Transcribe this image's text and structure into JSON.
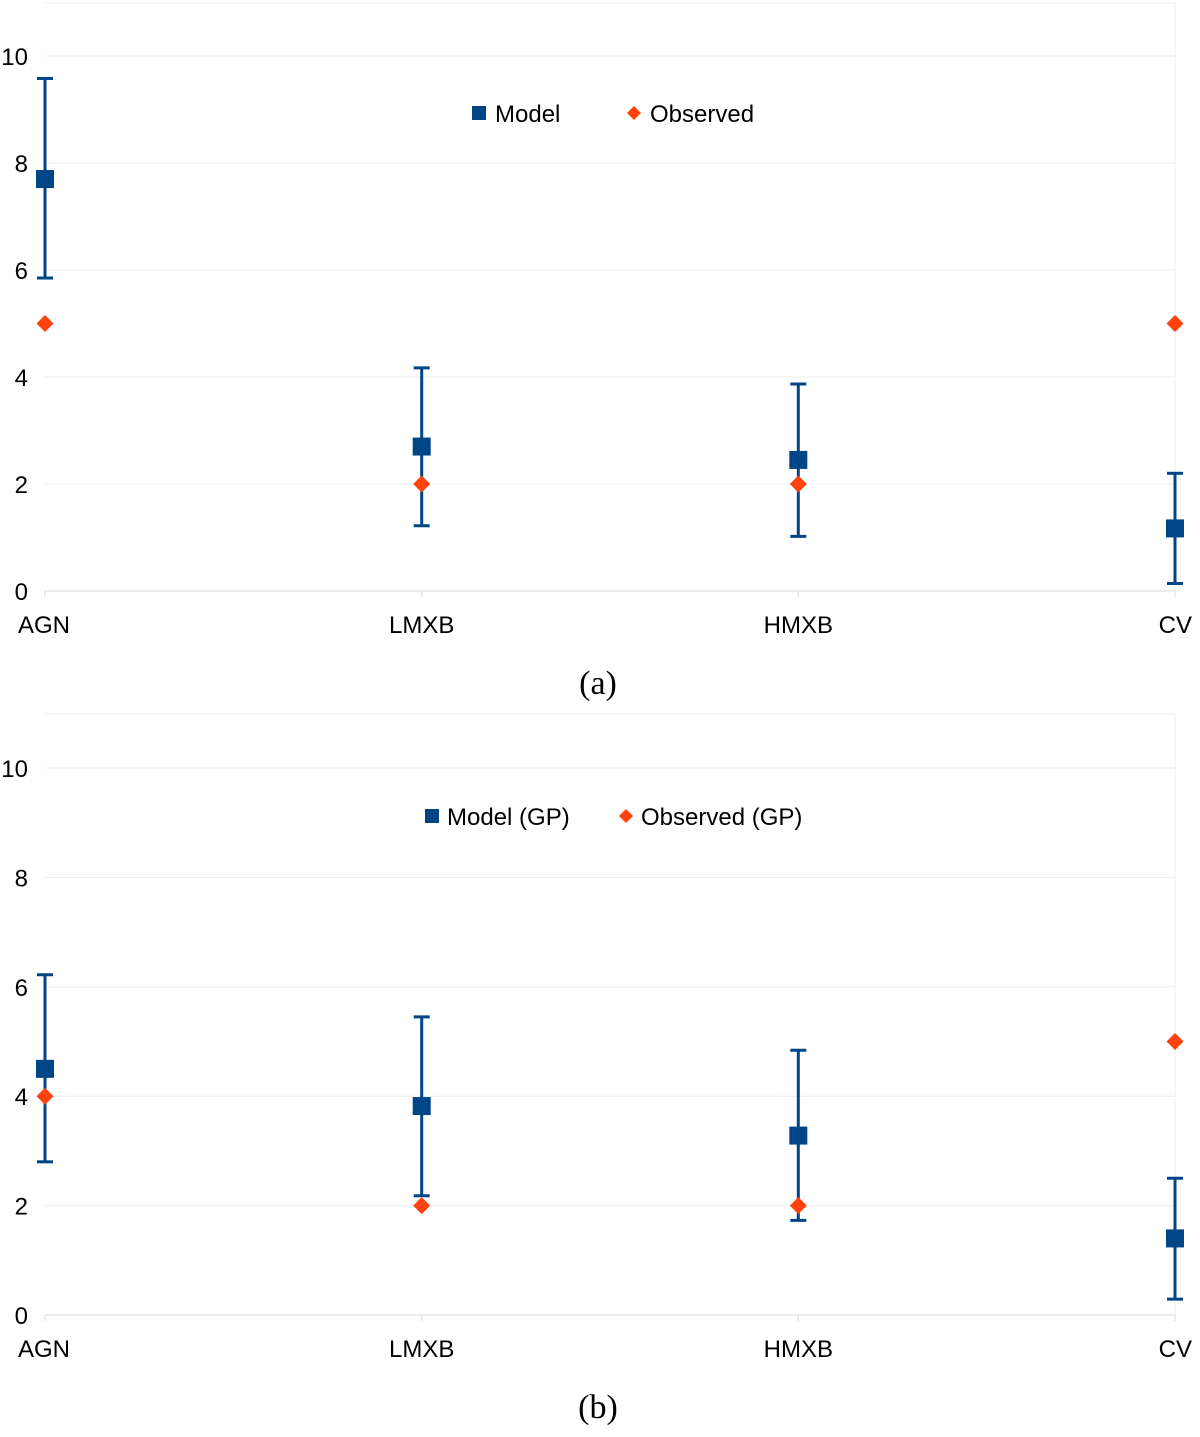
{
  "colors": {
    "model": "#004586",
    "observed": "#ff420e"
  },
  "chart_data": [
    {
      "id": "a",
      "type": "scatter",
      "caption": "(a)",
      "categories": [
        "AGN",
        "LMXB",
        "HMXB",
        "CV"
      ],
      "ylim": [
        0,
        10
      ],
      "yticks": [
        "0",
        "2",
        "4",
        "6",
        "8",
        "10"
      ],
      "grid": true,
      "legend_position": "top-center",
      "xlabel": "",
      "ylabel": "",
      "series": [
        {
          "name": "Model",
          "marker": "square",
          "values": [
            7.7,
            2.7,
            2.45,
            1.17
          ],
          "error_low": [
            5.85,
            1.22,
            1.02,
            0.14
          ],
          "error_high": [
            9.58,
            4.17,
            3.87,
            2.2
          ]
        },
        {
          "name": "Observed",
          "marker": "diamond",
          "values": [
            5,
            2,
            2,
            5
          ]
        }
      ]
    },
    {
      "id": "b",
      "type": "scatter",
      "caption": "(b)",
      "categories": [
        "AGN",
        "LMXB",
        "HMXB",
        "CV"
      ],
      "ylim": [
        0,
        10
      ],
      "yticks": [
        "0",
        "2",
        "4",
        "6",
        "8",
        "10"
      ],
      "grid": true,
      "legend_position": "top-center",
      "xlabel": "",
      "ylabel": "",
      "series": [
        {
          "name": "Model (GP)",
          "marker": "square",
          "values": [
            4.5,
            3.82,
            3.28,
            1.4
          ],
          "error_low": [
            2.8,
            2.18,
            1.73,
            0.29
          ],
          "error_high": [
            6.22,
            5.45,
            4.84,
            2.5
          ]
        },
        {
          "name": "Observed (GP)",
          "marker": "diamond",
          "values": [
            4,
            2,
            2,
            5
          ]
        }
      ]
    }
  ]
}
